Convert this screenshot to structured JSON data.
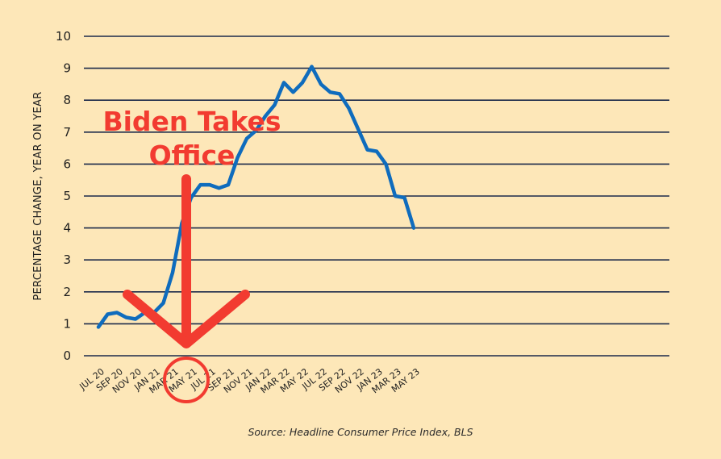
{
  "chart_data": {
    "type": "line",
    "ylabel": "PERCENTAGE CHANGE, YEAR ON YEAR",
    "ylim": [
      0,
      10
    ],
    "yticks": [
      "0",
      "1",
      "2",
      "3",
      "4",
      "5",
      "6",
      "7",
      "8",
      "9",
      "10"
    ],
    "xtick_labels": [
      "JUL 20",
      "SEP 20",
      "NOV 20",
      "JAN 21",
      "MAR 21",
      "MAY 21",
      "JUL 21",
      "SEP 21",
      "NOV 21",
      "JAN 22",
      "MAR 22",
      "MAY 22",
      "JUL 22",
      "SEP 22",
      "NOV 22",
      "JAN 23",
      "MAR 23",
      "MAY 23"
    ],
    "grid": true,
    "series": [
      {
        "color": "#0f6cbd",
        "x": [
          "Jul 2020",
          "Aug 2020",
          "Sep 2020",
          "Oct 2020",
          "Nov 2020",
          "Dec 2020",
          "Jan 2021",
          "Feb 2021",
          "Mar 2021",
          "Apr 2021",
          "May 2021",
          "Jun 2021",
          "Jul 2021",
          "Aug 2021",
          "Sep 2021",
          "Oct 2021",
          "Nov 2021",
          "Dec 2021",
          "Jan 2022",
          "Feb 2022",
          "Mar 2022",
          "Apr 2022",
          "May 2022",
          "Jun 2022",
          "Jul 2022",
          "Aug 2022",
          "Sep 2022",
          "Oct 2022",
          "Nov 2022",
          "Dec 2022",
          "Jan 2023",
          "Feb 2023",
          "Mar 2023",
          "Apr 2023",
          "May 2023"
        ],
        "values": [
          0.9,
          1.3,
          1.35,
          1.2,
          1.15,
          1.35,
          1.35,
          1.65,
          2.6,
          4.15,
          4.95,
          5.35,
          5.35,
          5.25,
          5.35,
          6.2,
          6.8,
          7.05,
          7.5,
          7.85,
          8.55,
          8.25,
          8.55,
          9.05,
          8.5,
          8.25,
          8.2,
          7.75,
          7.1,
          6.45,
          6.4,
          6.0,
          5.0,
          4.95,
          4.0
        ]
      }
    ],
    "annotations": {
      "text_line1": "Biden Takes",
      "text_line2": "Office",
      "color": "#f23b30",
      "marker_month": "Jan 2021"
    },
    "source": "Source: Headline Consumer Price Index, BLS"
  }
}
